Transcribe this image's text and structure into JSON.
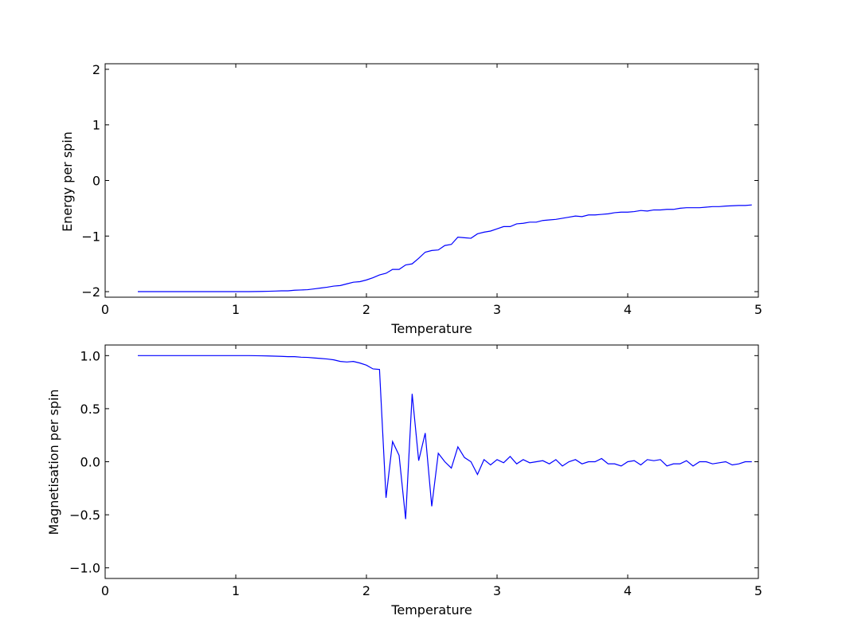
{
  "chart_data": [
    {
      "type": "line",
      "xlabel": "Temperature",
      "ylabel": "Energy per spin",
      "xlim": [
        0,
        5
      ],
      "ylim": [
        -2.1,
        2.1
      ],
      "xticks": [
        "0",
        "1",
        "2",
        "3",
        "4",
        "5"
      ],
      "yticks": [
        "−2",
        "−1",
        "0",
        "1",
        "2"
      ],
      "line_color": "#0000ff",
      "grid": false,
      "series": [
        {
          "x": [
            0.25,
            0.3,
            0.35,
            0.4,
            0.45,
            0.5,
            0.55,
            0.6,
            0.65,
            0.7,
            0.75,
            0.8,
            0.85,
            0.9,
            0.95,
            1.0,
            1.05,
            1.1,
            1.15,
            1.2,
            1.25,
            1.3,
            1.35,
            1.4,
            1.45,
            1.5,
            1.55,
            1.6,
            1.65,
            1.7,
            1.75,
            1.8,
            1.85,
            1.9,
            1.95,
            2.0,
            2.05,
            2.1,
            2.15,
            2.2,
            2.25,
            2.3,
            2.35,
            2.4,
            2.45,
            2.5,
            2.55,
            2.6,
            2.65,
            2.7,
            2.75,
            2.8,
            2.85,
            2.9,
            2.95,
            3.0,
            3.05,
            3.1,
            3.15,
            3.2,
            3.25,
            3.3,
            3.35,
            3.4,
            3.45,
            3.5,
            3.55,
            3.6,
            3.65,
            3.7,
            3.75,
            3.8,
            3.85,
            3.9,
            3.95,
            4.0,
            4.05,
            4.1,
            4.15,
            4.2,
            4.25,
            4.3,
            4.35,
            4.4,
            4.45,
            4.5,
            4.55,
            4.6,
            4.65,
            4.7,
            4.75,
            4.8,
            4.85,
            4.9,
            4.95
          ],
          "y": [
            -2.0,
            -2.0,
            -2.0,
            -2.0,
            -2.0,
            -2.0,
            -2.0,
            -2.0,
            -2.0,
            -2.0,
            -2.0,
            -2.0,
            -2.0,
            -2.0,
            -2.0,
            -2.0,
            -2.0,
            -2.0,
            -1.998,
            -1.996,
            -1.993,
            -1.99,
            -1.985,
            -1.985,
            -1.975,
            -1.97,
            -1.965,
            -1.95,
            -1.935,
            -1.92,
            -1.9,
            -1.89,
            -1.86,
            -1.83,
            -1.82,
            -1.79,
            -1.75,
            -1.7,
            -1.67,
            -1.6,
            -1.6,
            -1.52,
            -1.5,
            -1.4,
            -1.29,
            -1.26,
            -1.25,
            -1.17,
            -1.15,
            -1.02,
            -1.03,
            -1.04,
            -0.96,
            -0.93,
            -0.91,
            -0.87,
            -0.83,
            -0.83,
            -0.78,
            -0.77,
            -0.75,
            -0.75,
            -0.72,
            -0.71,
            -0.7,
            -0.68,
            -0.66,
            -0.64,
            -0.65,
            -0.62,
            -0.62,
            -0.61,
            -0.6,
            -0.58,
            -0.57,
            -0.57,
            -0.56,
            -0.54,
            -0.55,
            -0.53,
            -0.53,
            -0.52,
            -0.52,
            -0.5,
            -0.49,
            -0.49,
            -0.49,
            -0.48,
            -0.47,
            -0.47,
            -0.46,
            -0.455,
            -0.45,
            -0.45,
            -0.44
          ]
        }
      ]
    },
    {
      "type": "line",
      "xlabel": "Temperature",
      "ylabel": "Magnetisation per spin",
      "xlim": [
        0,
        5
      ],
      "ylim": [
        -1.1,
        1.1
      ],
      "xticks": [
        "0",
        "1",
        "2",
        "3",
        "4",
        "5"
      ],
      "yticks": [
        "−1.0",
        "−0.5",
        "0.0",
        "0.5",
        "1.0"
      ],
      "line_color": "#0000ff",
      "grid": false,
      "series": [
        {
          "x": [
            0.25,
            0.3,
            0.35,
            0.4,
            0.45,
            0.5,
            0.55,
            0.6,
            0.65,
            0.7,
            0.75,
            0.8,
            0.85,
            0.9,
            0.95,
            1.0,
            1.05,
            1.1,
            1.15,
            1.2,
            1.25,
            1.3,
            1.35,
            1.4,
            1.45,
            1.5,
            1.55,
            1.6,
            1.65,
            1.7,
            1.75,
            1.8,
            1.85,
            1.9,
            1.95,
            2.0,
            2.05,
            2.1,
            2.15,
            2.2,
            2.25,
            2.3,
            2.35,
            2.4,
            2.45,
            2.5,
            2.55,
            2.6,
            2.65,
            2.7,
            2.75,
            2.8,
            2.85,
            2.9,
            2.95,
            3.0,
            3.05,
            3.1,
            3.15,
            3.2,
            3.25,
            3.3,
            3.35,
            3.4,
            3.45,
            3.5,
            3.55,
            3.6,
            3.65,
            3.7,
            3.75,
            3.8,
            3.85,
            3.9,
            3.95,
            4.0,
            4.05,
            4.1,
            4.15,
            4.2,
            4.25,
            4.3,
            4.35,
            4.4,
            4.45,
            4.5,
            4.55,
            4.6,
            4.65,
            4.7,
            4.75,
            4.8,
            4.85,
            4.9,
            4.95
          ],
          "y": [
            1.0,
            1.0,
            1.0,
            1.0,
            1.0,
            1.0,
            1.0,
            1.0,
            1.0,
            1.0,
            1.0,
            1.0,
            1.0,
            1.0,
            1.0,
            1.0,
            1.0,
            1.0,
            0.999,
            0.998,
            0.997,
            0.995,
            0.993,
            0.99,
            0.99,
            0.985,
            0.983,
            0.978,
            0.973,
            0.968,
            0.96,
            0.945,
            0.94,
            0.945,
            0.93,
            0.91,
            0.875,
            0.87,
            -0.34,
            0.19,
            0.06,
            -0.54,
            0.64,
            0.01,
            0.27,
            -0.42,
            0.08,
            0.0,
            -0.06,
            0.14,
            0.04,
            0.0,
            -0.12,
            0.02,
            -0.03,
            0.02,
            -0.01,
            0.05,
            -0.02,
            0.02,
            -0.01,
            0.0,
            0.01,
            -0.02,
            0.02,
            -0.04,
            0.0,
            0.02,
            -0.02,
            0.0,
            0.0,
            0.03,
            -0.02,
            -0.02,
            -0.04,
            0.0,
            0.01,
            -0.03,
            0.02,
            0.01,
            0.02,
            -0.04,
            -0.02,
            -0.02,
            0.01,
            -0.04,
            0.0,
            0.0,
            -0.02,
            -0.01,
            0.0,
            -0.03,
            -0.02,
            0.0,
            0.0
          ]
        }
      ]
    }
  ]
}
